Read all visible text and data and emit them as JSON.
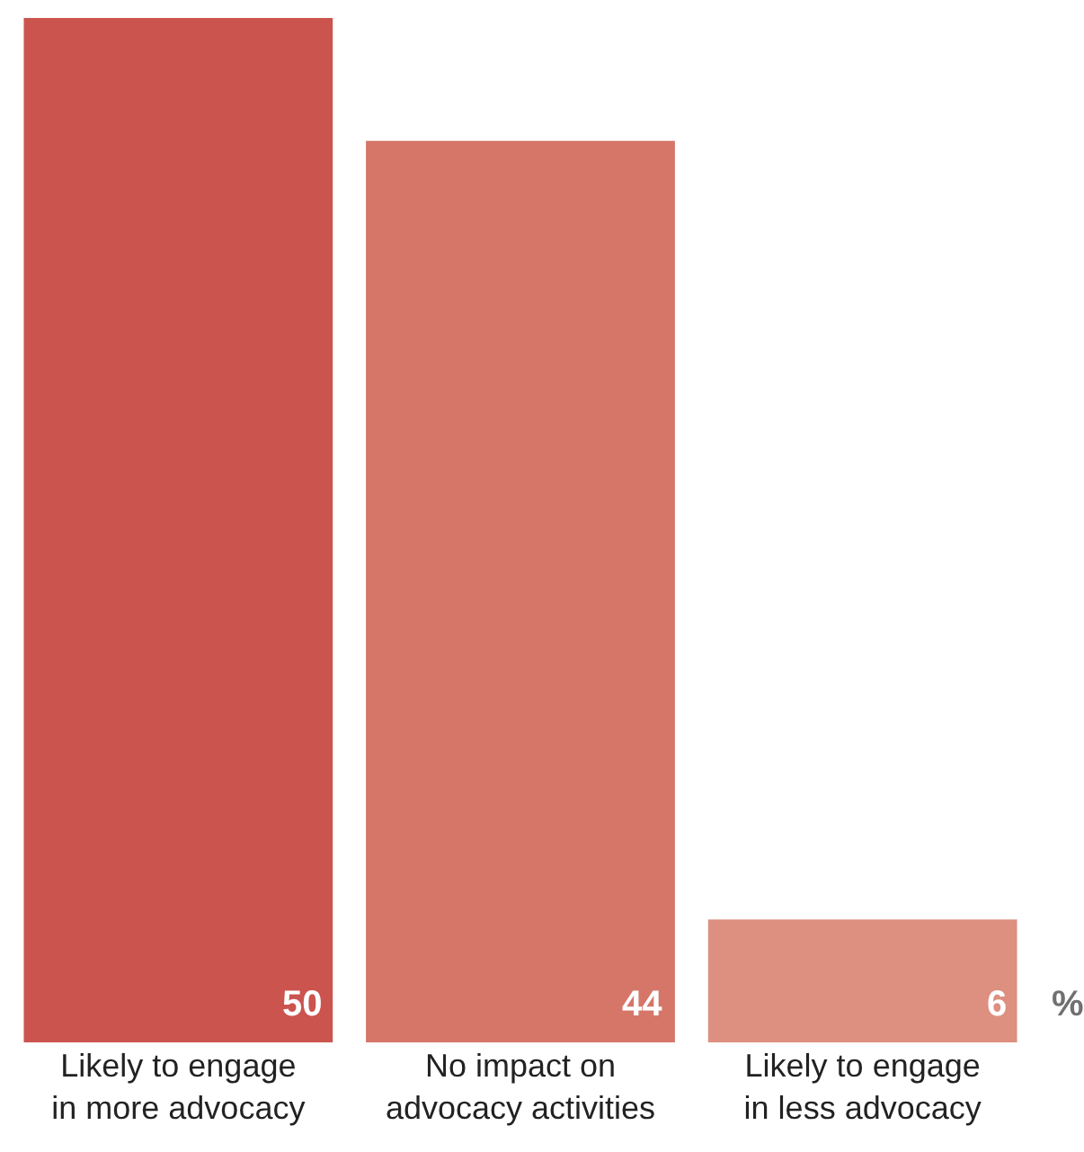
{
  "chart_data": {
    "type": "bar",
    "categories": [
      "Likely to engage\nin more advocacy",
      "No impact on\nadvocacy activities",
      "Likely to engage\nin less advocacy"
    ],
    "values": [
      50,
      44,
      6
    ],
    "colors": [
      "#cb544e",
      "#d57669",
      "#dd8f80"
    ],
    "data_labels": true,
    "annotations": [
      "%"
    ]
  }
}
